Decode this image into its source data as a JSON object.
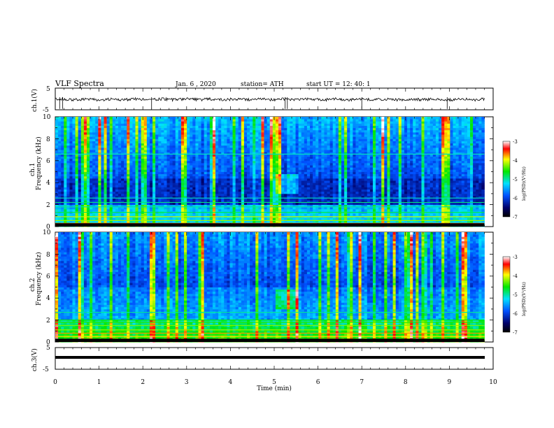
{
  "header": {
    "title": "VLF  Spectra",
    "date": "Jan.  6  , 2020",
    "station": "station= ATH",
    "start": "start  UT  =   12: 40: 1"
  },
  "chart_data": [
    {
      "type": "line",
      "name": "ch1-waveform",
      "ylabel": "ch.1(V)",
      "ylim": [
        -5,
        5
      ],
      "yticks": [
        "5",
        "-5"
      ],
      "xlim": [
        0,
        10
      ],
      "approx_mean": -0.2,
      "approx_spikes_min": [
        0.1,
        0.17,
        2.2,
        5.25,
        5.3,
        7.0,
        8.95
      ]
    },
    {
      "type": "heatmap",
      "name": "ch1-spectrogram",
      "ylabel": "Frequency  (kHz)",
      "panel_label": "ch.1",
      "xlim": [
        0,
        9.8
      ],
      "ylim": [
        0,
        10
      ],
      "yticks": [
        "0",
        "2",
        "4",
        "6",
        "8",
        "10"
      ],
      "colorbar": {
        "label": "log(PSD)(V²/Hz)",
        "range": [
          -7,
          -3
        ],
        "ticks": [
          "-3",
          "-4",
          "-5",
          "-6",
          "-7"
        ]
      },
      "features": "broadband impulsive sferics (vertical lines) throughout; strong narrowband lines near 0.2-1 kHz; enhanced emission near 4 kHz at about 5.3 min"
    },
    {
      "type": "heatmap",
      "name": "ch2-spectrogram",
      "ylabel": "Frequency  (kHz)",
      "panel_label": "ch.2",
      "xlim": [
        0,
        9.8
      ],
      "ylim": [
        0,
        10
      ],
      "yticks": [
        "0",
        "2",
        "4",
        "6",
        "8",
        "10"
      ],
      "colorbar": {
        "label": "log(PSD)(V²/Hz)",
        "range": [
          -7,
          -3
        ],
        "ticks": [
          "-3",
          "-4",
          "-5",
          "-6",
          "-7"
        ]
      },
      "features": "broadband sferics; intense band below about 2 kHz; enhanced emission near 4 kHz at about 5.3 min"
    },
    {
      "type": "line",
      "name": "ch3-waveform",
      "ylabel": "ch.3(V)",
      "ylim": [
        -5,
        5
      ],
      "yticks": [
        "5",
        "-5"
      ],
      "xlim": [
        0,
        10
      ],
      "approx_mean": 0
    }
  ],
  "xaxis": {
    "label": "Time  (min)",
    "ticks": [
      "0",
      "1",
      "2",
      "3",
      "4",
      "5",
      "6",
      "7",
      "8",
      "9",
      "10"
    ]
  }
}
